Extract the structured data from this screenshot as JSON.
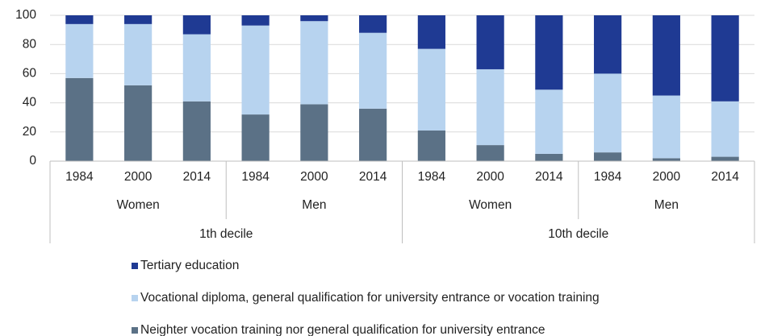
{
  "chart_data": {
    "type": "stacked_bar",
    "categories": [
      "1984",
      "2000",
      "2014",
      "1984",
      "2000",
      "2014",
      "1984",
      "2000",
      "2014",
      "1984",
      "2000",
      "2014"
    ],
    "groups": [
      "Women",
      "Men",
      "Women",
      "Men"
    ],
    "super_groups": [
      "1th decile",
      "10th decile"
    ],
    "series": [
      {
        "name": "Neighter vocation training nor general qualification for university entrance",
        "color": "#5b7186",
        "values": [
          57,
          52,
          41,
          32,
          39,
          36,
          21,
          11,
          5,
          6,
          2,
          3
        ]
      },
      {
        "name": "Vocational diploma, general qualification for university entrance or vocation training",
        "color": "#b7d3ef",
        "values": [
          37,
          42,
          46,
          61,
          57,
          52,
          56,
          52,
          44,
          54,
          43,
          38
        ]
      },
      {
        "name": "Tertiary education",
        "color": "#1f3a93",
        "values": [
          6,
          6,
          13,
          7,
          4,
          12,
          23,
          37,
          51,
          40,
          55,
          59
        ]
      }
    ],
    "ylim": [
      0,
      100
    ],
    "yticks": [
      0,
      20,
      40,
      60,
      80,
      100
    ],
    "grid": true
  }
}
